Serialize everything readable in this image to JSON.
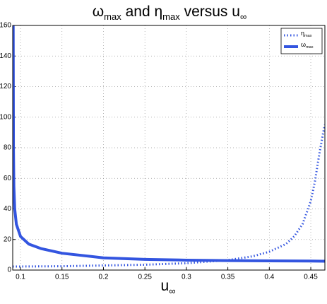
{
  "chart_data": {
    "type": "line",
    "title": [
      "ω",
      "max",
      " and η",
      "max",
      " versus u",
      "∞"
    ],
    "xlabel": [
      "u",
      "∞"
    ],
    "xlim": [
      0.0906,
      0.467
    ],
    "ylim": [
      0,
      160
    ],
    "xticks": [
      0.1,
      0.15,
      0.2,
      0.25,
      0.3,
      0.35,
      0.4,
      0.45
    ],
    "yticks": [
      0,
      20,
      40,
      60,
      80,
      100,
      120,
      140,
      160
    ],
    "grid": true,
    "legend": "top-right",
    "series": [
      {
        "name": [
          "η",
          "max"
        ],
        "color": "#3355e0",
        "style": "dotted",
        "x": [
          0.0906,
          0.15,
          0.2,
          0.25,
          0.3,
          0.35,
          0.38,
          0.4,
          0.42,
          0.43,
          0.44,
          0.45,
          0.455,
          0.46,
          0.465,
          0.467
        ],
        "values": [
          2.3,
          2.5,
          3,
          3.5,
          4.5,
          6.5,
          9,
          12,
          17,
          22,
          30,
          45,
          58,
          75,
          90,
          95
        ]
      },
      {
        "name": [
          "ω",
          "max"
        ],
        "color": "#3355e0",
        "style": "solid",
        "x": [
          0.0912,
          0.0915,
          0.092,
          0.093,
          0.095,
          0.1,
          0.11,
          0.125,
          0.15,
          0.2,
          0.25,
          0.3,
          0.35,
          0.4,
          0.45,
          0.467
        ],
        "values": [
          160,
          80,
          55,
          40,
          30,
          22,
          17,
          14,
          11,
          8,
          7,
          6.5,
          6.2,
          6,
          5.9,
          5.8
        ]
      }
    ]
  }
}
